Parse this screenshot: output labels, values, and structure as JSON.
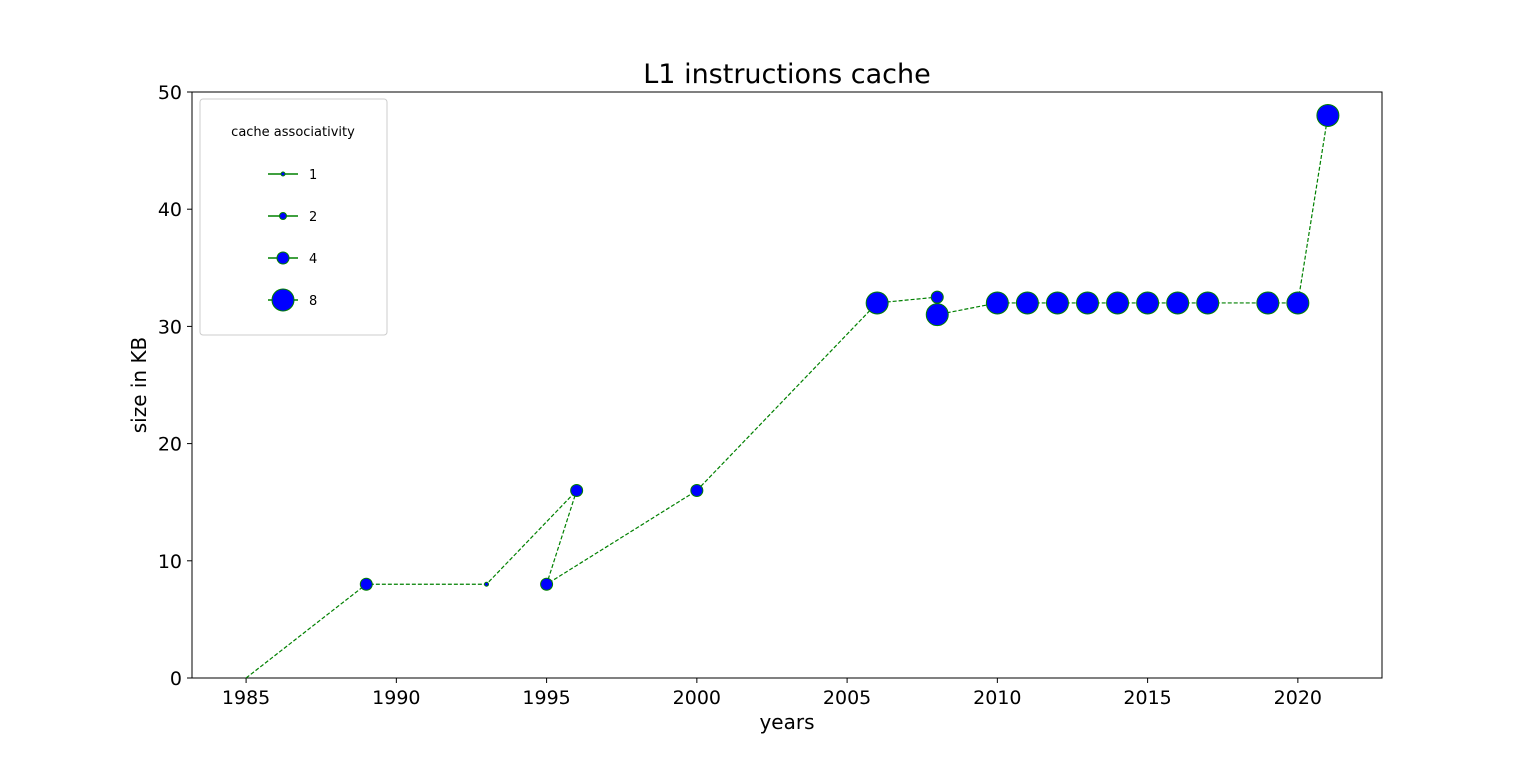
{
  "chart_data": {
    "type": "line",
    "title": "L1 instructions cache",
    "xlabel": "years",
    "ylabel": "size in KB",
    "xlim": [
      1983.2,
      2022.8
    ],
    "ylim": [
      0,
      50
    ],
    "xticks": [
      1985,
      1990,
      1995,
      2000,
      2005,
      2010,
      2015,
      2020
    ],
    "yticks": [
      0,
      10,
      20,
      30,
      40,
      50
    ],
    "grid": false,
    "line_style": "dashed",
    "colors": {
      "line": "#008000",
      "marker_fill": "#0000ff",
      "marker_edge": "#008000"
    },
    "legend": {
      "title": "cache associativity",
      "placement": "top-left",
      "entries": [
        {
          "label": "1",
          "associativity": 1
        },
        {
          "label": "2",
          "associativity": 2
        },
        {
          "label": "4",
          "associativity": 4
        },
        {
          "label": "8",
          "associativity": 8
        }
      ]
    },
    "points": [
      {
        "x": 1985,
        "y": 0,
        "associativity": 0
      },
      {
        "x": 1989,
        "y": 8,
        "associativity": 4
      },
      {
        "x": 1993,
        "y": 8,
        "associativity": 1
      },
      {
        "x": 1996,
        "y": 16,
        "associativity": 4
      },
      {
        "x": 1995,
        "y": 8,
        "associativity": 4
      },
      {
        "x": 2000,
        "y": 16,
        "associativity": 4
      },
      {
        "x": 2006,
        "y": 32,
        "associativity": 8
      },
      {
        "x": 2008,
        "y": 32.5,
        "associativity": 4
      },
      {
        "x": 2008,
        "y": 31,
        "associativity": 8
      },
      {
        "x": 2010,
        "y": 32,
        "associativity": 8
      },
      {
        "x": 2011,
        "y": 32,
        "associativity": 8
      },
      {
        "x": 2012,
        "y": 32,
        "associativity": 8
      },
      {
        "x": 2013,
        "y": 32,
        "associativity": 8
      },
      {
        "x": 2014,
        "y": 32,
        "associativity": 8
      },
      {
        "x": 2015,
        "y": 32,
        "associativity": 8
      },
      {
        "x": 2016,
        "y": 32,
        "associativity": 8
      },
      {
        "x": 2017,
        "y": 32,
        "associativity": 8
      },
      {
        "x": 2019,
        "y": 32,
        "associativity": 8
      },
      {
        "x": 2020,
        "y": 32,
        "associativity": 8
      },
      {
        "x": 2021,
        "y": 48,
        "associativity": 8
      }
    ]
  }
}
